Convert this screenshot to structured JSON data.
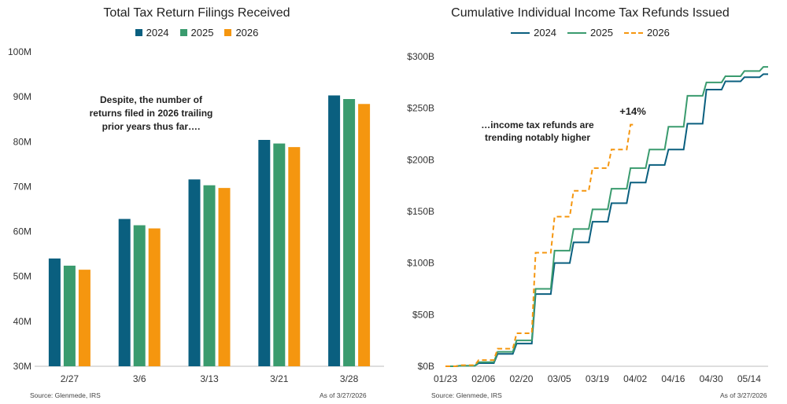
{
  "chart_data": [
    {
      "type": "bar",
      "title": "Total Tax Return Filings Received",
      "categories": [
        "2/27",
        "3/6",
        "3/13",
        "3/21",
        "3/28"
      ],
      "series": [
        {
          "name": "2024",
          "color": "#0a5f7f",
          "values": [
            54.0,
            62.8,
            71.6,
            80.4,
            90.3
          ]
        },
        {
          "name": "2025",
          "color": "#3a9b6e",
          "values": [
            52.4,
            61.4,
            70.3,
            79.6,
            89.5
          ]
        },
        {
          "name": "2026",
          "color": "#f5960f",
          "values": [
            51.5,
            60.7,
            69.7,
            78.8,
            88.4
          ]
        }
      ],
      "ylim": [
        30,
        100
      ],
      "yticks": [
        30,
        40,
        50,
        60,
        70,
        80,
        90,
        100
      ],
      "ytick_labels": [
        "30M",
        "40M",
        "50M",
        "60M",
        "70M",
        "80M",
        "90M",
        "100M"
      ],
      "annotation_lines": [
        "Despite, the number of",
        "returns filed in 2026 trailing",
        "prior years thus far…."
      ],
      "source": "Source: Glenmede, IRS",
      "as_of": "As of 3/27/2026"
    },
    {
      "type": "line",
      "title": "Cumulative Individual Income Tax Refunds Issued",
      "x_dates": [
        "01/23",
        "01/30",
        "02/06",
        "02/13",
        "02/20",
        "02/27",
        "03/05",
        "03/12",
        "03/19",
        "03/26",
        "04/02",
        "04/09",
        "04/16",
        "04/23",
        "04/30",
        "05/07",
        "05/14",
        "05/21"
      ],
      "series": [
        {
          "name": "2024",
          "color": "#0a5f7f",
          "dash": false,
          "values": [
            0,
            0.5,
            3,
            12,
            22,
            70,
            100,
            120,
            140,
            158,
            178,
            195,
            210,
            235,
            268,
            276,
            280,
            283
          ]
        },
        {
          "name": "2025",
          "color": "#3a9b6e",
          "dash": false,
          "values": [
            0,
            0.5,
            4,
            14,
            25,
            75,
            112,
            133,
            152,
            172,
            192,
            210,
            232,
            262,
            275,
            281,
            286,
            290
          ]
        },
        {
          "name": "2026",
          "color": "#f5960f",
          "dash": true,
          "values": [
            0,
            1,
            6,
            17,
            32,
            110,
            145,
            170,
            192,
            210,
            234
          ]
        }
      ],
      "xtick_labels": [
        "01/23",
        "02/06",
        "02/20",
        "03/05",
        "03/19",
        "04/02",
        "04/16",
        "04/30",
        "05/14"
      ],
      "xtick_index": [
        0,
        2,
        4,
        6,
        8,
        10,
        12,
        14,
        16
      ],
      "ylim": [
        0,
        300
      ],
      "yticks": [
        0,
        50,
        100,
        150,
        200,
        250,
        300
      ],
      "ytick_labels": [
        "$0B",
        "$50B",
        "$100B",
        "$150B",
        "$200B",
        "$250B",
        "$300B"
      ],
      "annotation_lines": [
        "…income tax refunds are",
        "trending notably higher"
      ],
      "pct_label": "+14%",
      "source": "Source: Glenmede, IRS",
      "as_of": "As of 3/27/2026"
    }
  ]
}
